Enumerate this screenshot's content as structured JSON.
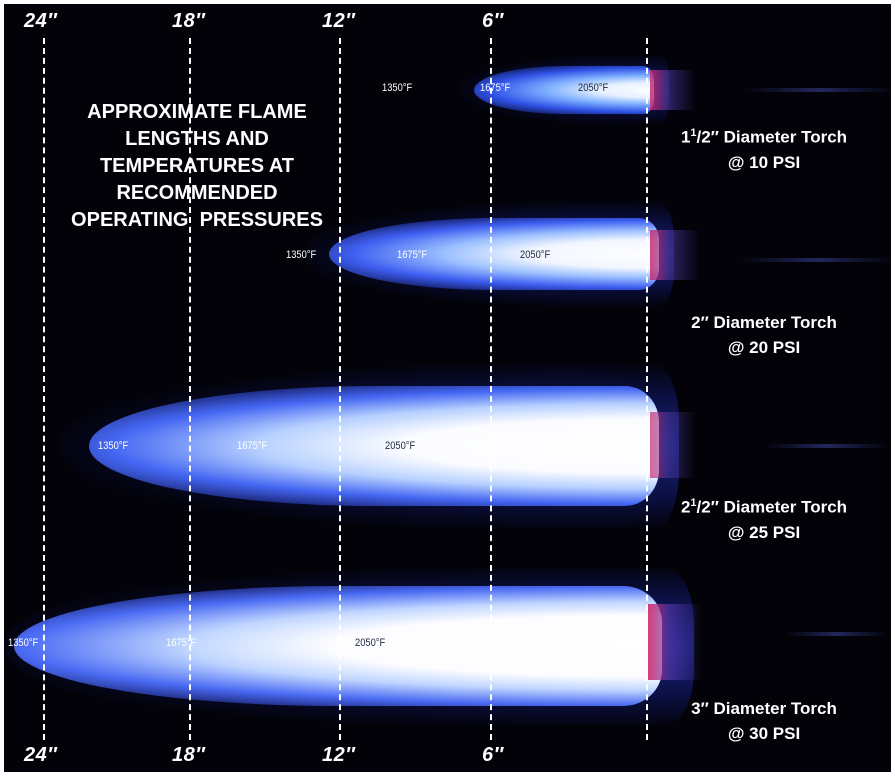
{
  "title_lines": [
    "APPROXIMATE FLAME",
    "LENGTHS AND",
    "TEMPERATURES AT",
    "RECOMMENDED",
    "OPERATING  PRESSURES"
  ],
  "ruler_top": [
    "24″",
    "18″",
    "12″",
    "6″"
  ],
  "ruler_bottom": [
    "24″",
    "18″",
    "12″",
    "6″"
  ],
  "flames": [
    {
      "torch_size_main": "1",
      "torch_size_num": "1",
      "torch_size_den": "/2",
      "torch_size_rest": "″ Diameter Torch",
      "pressure": "@ 10 PSI",
      "temps": [
        "1350°F",
        "1675°F",
        "2050°F"
      ]
    },
    {
      "torch_size_main": "2",
      "torch_size_num": "",
      "torch_size_den": "",
      "torch_size_rest": "″ Diameter Torch",
      "pressure": "@ 20 PSI",
      "temps": [
        "1350°F",
        "1675°F",
        "2050°F"
      ]
    },
    {
      "torch_size_main": "2",
      "torch_size_num": "1",
      "torch_size_den": "/2",
      "torch_size_rest": "″ Diameter Torch",
      "pressure": "@ 25 PSI",
      "temps": [
        "1350°F",
        "1675°F",
        "2050°F"
      ]
    },
    {
      "torch_size_main": "3",
      "torch_size_num": "",
      "torch_size_den": "",
      "torch_size_rest": "″ Diameter Torch",
      "pressure": "@ 30 PSI",
      "temps": [
        "1350°F",
        "1675°F",
        "2050°F"
      ]
    }
  ],
  "colors": {
    "background": "#020208",
    "flame_core": "#ffffff",
    "flame_mid": "#4a6cff",
    "flame_outer": "#1a2a9a",
    "nozzle_tint": "#d0306a"
  }
}
